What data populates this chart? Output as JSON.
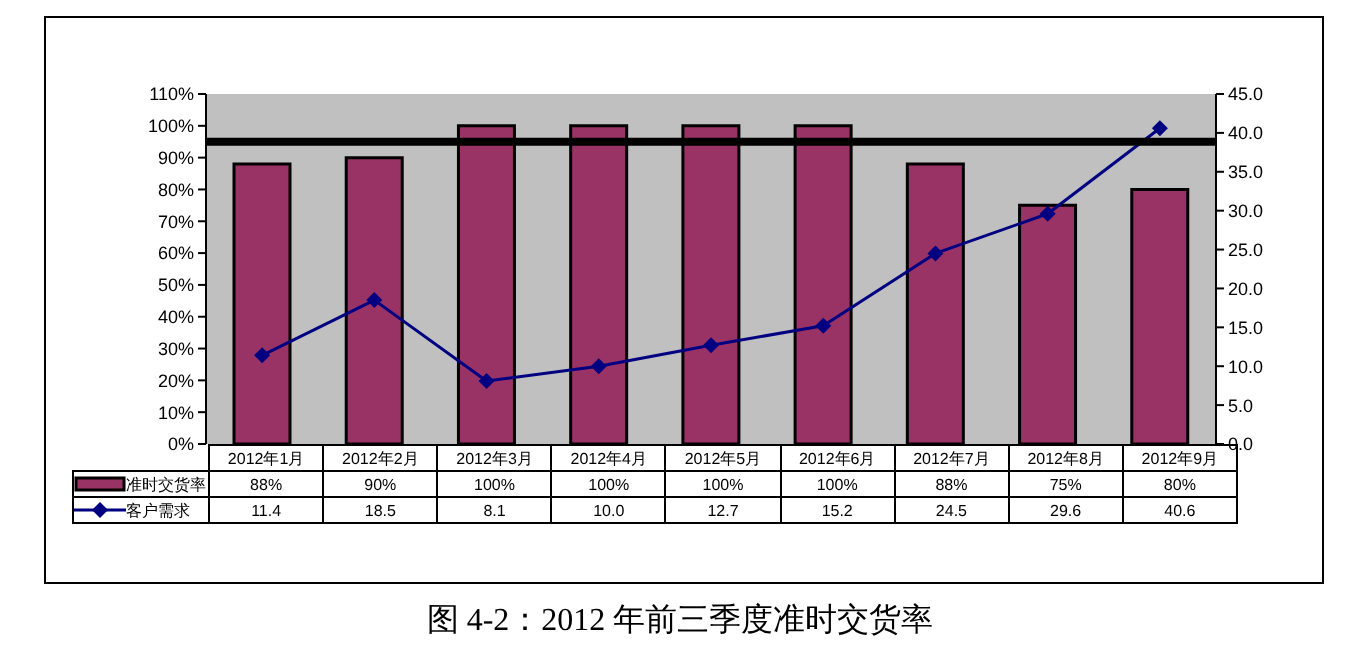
{
  "chart_data": {
    "type": "bar",
    "title": "图 4-2：2012 年前三季度准时交货率",
    "categories": [
      "2012年1月",
      "2012年2月",
      "2012年3月",
      "2012年4月",
      "2012年5月",
      "2012年6月",
      "2012年7月",
      "2012年8月",
      "2012年9月"
    ],
    "series": [
      {
        "name": "准时交货率",
        "color": "#993366",
        "values": [
          88,
          90,
          100,
          100,
          100,
          100,
          88,
          75,
          80
        ],
        "value_labels": [
          "88%",
          "90%",
          "100%",
          "100%",
          "100%",
          "100%",
          "88%",
          "75%",
          "80%"
        ]
      },
      {
        "name": "客户需求",
        "type": "line",
        "axis": "y2",
        "color": "#000080",
        "marker": "diamond",
        "values": [
          11.4,
          18.5,
          8.1,
          10.0,
          12.7,
          15.2,
          24.5,
          29.6,
          40.6
        ],
        "value_labels": [
          "11.4",
          "18.5",
          "8.1",
          "10.0",
          "12.7",
          "15.2",
          "24.5",
          "29.6",
          "40.6"
        ]
      }
    ],
    "ylim": [
      0,
      110
    ],
    "yticks": [
      {
        "value": 0,
        "label": "0%"
      },
      {
        "value": 10,
        "label": "10%"
      },
      {
        "value": 20,
        "label": "20%"
      },
      {
        "value": 30,
        "label": "30%"
      },
      {
        "value": 40,
        "label": "40%"
      },
      {
        "value": 50,
        "label": "50%"
      },
      {
        "value": 60,
        "label": "60%"
      },
      {
        "value": 70,
        "label": "70%"
      },
      {
        "value": 80,
        "label": "80%"
      },
      {
        "value": 90,
        "label": "90%"
      },
      {
        "value": 100,
        "label": "100%"
      },
      {
        "value": 110,
        "label": "110%"
      }
    ],
    "y2lim": [
      0,
      45
    ],
    "y2ticks": [
      {
        "value": 0,
        "label": "0.0"
      },
      {
        "value": 5,
        "label": "5.0"
      },
      {
        "value": 10,
        "label": "10.0"
      },
      {
        "value": 15,
        "label": "15.0"
      },
      {
        "value": 20,
        "label": "20.0"
      },
      {
        "value": 25,
        "label": "25.0"
      },
      {
        "value": 30,
        "label": "30.0"
      },
      {
        "value": 35,
        "label": "35.0"
      },
      {
        "value": 40,
        "label": "40.0"
      },
      {
        "value": 45,
        "label": "45.0"
      }
    ],
    "ref_lines": [
      {
        "axis": "y",
        "value": 95,
        "color": "#000000"
      }
    ],
    "legend": "bottom"
  }
}
